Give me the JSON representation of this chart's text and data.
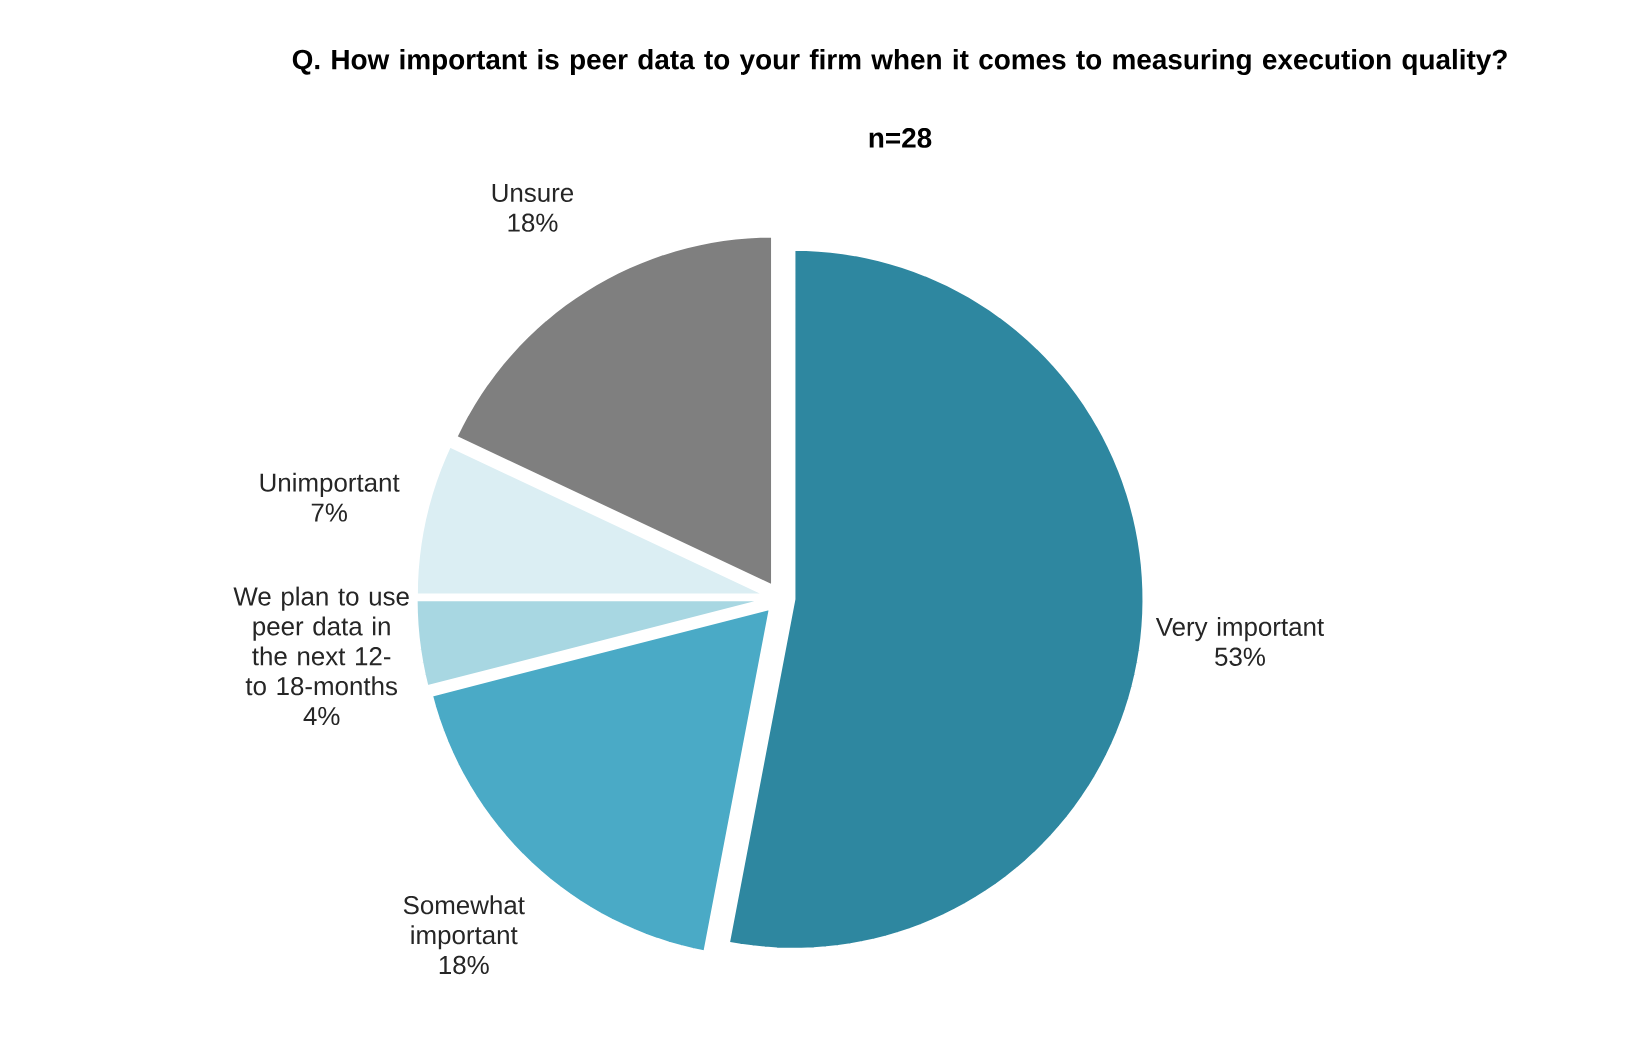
{
  "chart_data": {
    "type": "pie",
    "title": "Q. How important is peer data to your firm when it comes to measuring execution quality?",
    "subtitle": "n=28",
    "categories": [
      "Very important",
      "Somewhat important",
      "We plan to use peer data in the next 12- to 18-months",
      "Unimportant",
      "Unsure"
    ],
    "values": [
      53,
      18,
      4,
      7,
      18
    ],
    "value_labels": [
      "53%",
      "18%",
      "4%",
      "7%",
      "18%"
    ],
    "colors": [
      "#2e87a0",
      "#4aaac6",
      "#a8d7e2",
      "#dbeef3",
      "#7f7f7f"
    ]
  }
}
